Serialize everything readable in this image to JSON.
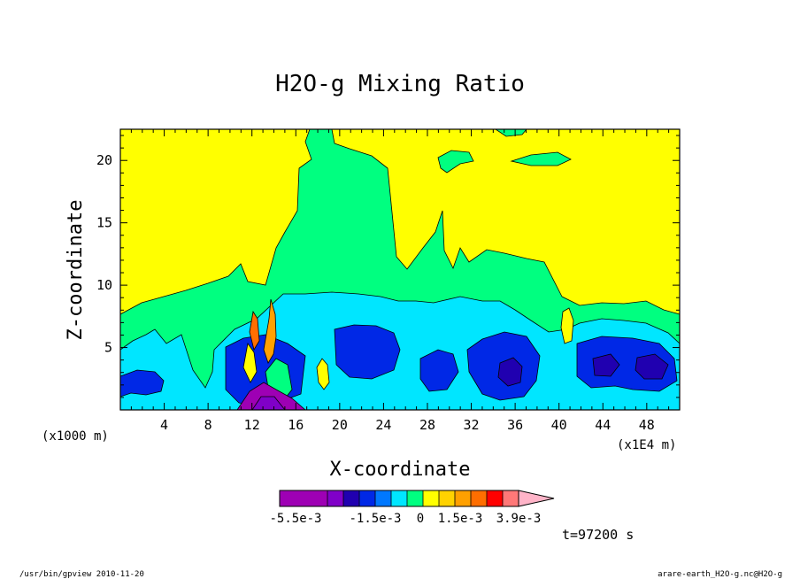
{
  "chart_data": {
    "type": "heatmap",
    "title": "H2O-g Mixing Ratio",
    "xlabel": "X-coordinate",
    "ylabel": "Z-coordinate",
    "x_unit_left": "(x1000 m)",
    "x_unit_right": "(x1E4 m)",
    "xlim": [
      0,
      51
    ],
    "ylim": [
      0,
      22.5
    ],
    "x_ticks": [
      4,
      8,
      12,
      16,
      20,
      24,
      28,
      32,
      36,
      40,
      44,
      48
    ],
    "y_ticks": [
      5,
      10,
      15,
      20
    ],
    "time_label": "t=97200 s",
    "colorbar": {
      "colors": [
        "#9e00b4",
        "#9e00b4",
        "#9e00b4",
        "#8000c8",
        "#2000b0",
        "#0028e6",
        "#0078ff",
        "#00e6ff",
        "#00ff80",
        "#ffff00",
        "#ffd200",
        "#ffa000",
        "#ff6e00",
        "#ff0000",
        "#ff7878"
      ],
      "extend_color": "#ffb4c8",
      "labels": [
        "-5.5e-3",
        "-1.5e-3",
        "0",
        "1.5e-3",
        "3.9e-3"
      ]
    }
  },
  "footer": {
    "left": "/usr/bin/gpview  2010-11-20",
    "right": "arare-earth_H2O-g.nc@H2O-g"
  }
}
